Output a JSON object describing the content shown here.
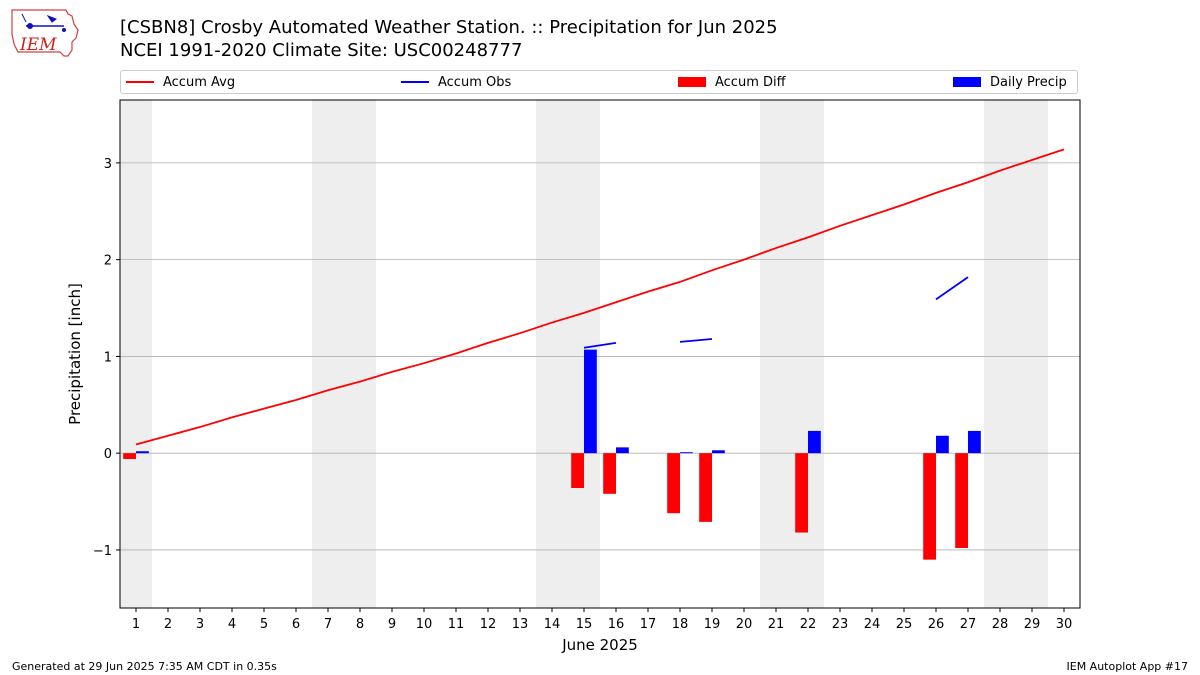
{
  "logo": {
    "text": "IEM"
  },
  "title_line1": "[CSBN8] Crosby Automated Weather Station. :: Precipitation for Jun 2025",
  "title_line2": "NCEI 1991-2020 Climate Site: USC00248777",
  "footer": {
    "left": "Generated at 29 Jun 2025 7:35 AM CDT in 0.35s",
    "right": "IEM Autoplot App #17"
  },
  "colors": {
    "avg": "#ff0000",
    "obs": "#0000ff",
    "diff": "#ff0000",
    "precip": "#0000ff",
    "weekend": "#eeeeee",
    "grid": "#b0b0b0"
  },
  "chart_data": {
    "type": "bar",
    "xlabel": "June 2025",
    "ylabel": "Precipitation [inch]",
    "xlim": [
      0.5,
      30.5
    ],
    "ylim": [
      -1.6,
      3.65
    ],
    "yticks": [
      -1,
      0,
      1,
      2,
      3
    ],
    "ytick_labels": [
      "−1",
      "0",
      "1",
      "2",
      "3"
    ],
    "xticks": [
      1,
      2,
      3,
      4,
      5,
      6,
      7,
      8,
      9,
      10,
      11,
      12,
      13,
      14,
      15,
      16,
      17,
      18,
      19,
      20,
      21,
      22,
      23,
      24,
      25,
      26,
      27,
      28,
      29,
      30
    ],
    "grid": "y",
    "legend_placement": "top",
    "weekend_shading": [
      [
        0.5,
        1.5
      ],
      [
        6.5,
        8.5
      ],
      [
        13.5,
        15.5
      ],
      [
        20.5,
        22.5
      ],
      [
        27.5,
        29.5
      ]
    ],
    "series": [
      {
        "name": "Accum Avg",
        "kind": "line",
        "x": [
          1,
          2,
          3,
          4,
          5,
          6,
          7,
          8,
          9,
          10,
          11,
          12,
          13,
          14,
          15,
          16,
          17,
          18,
          19,
          20,
          21,
          22,
          23,
          24,
          25,
          26,
          27,
          28,
          29,
          30
        ],
        "values": [
          0.09,
          0.18,
          0.27,
          0.37,
          0.46,
          0.55,
          0.65,
          0.74,
          0.84,
          0.93,
          1.03,
          1.14,
          1.24,
          1.35,
          1.45,
          1.56,
          1.67,
          1.77,
          1.89,
          2.0,
          2.12,
          2.23,
          2.35,
          2.46,
          2.57,
          2.69,
          2.8,
          2.92,
          3.03,
          3.14
        ]
      },
      {
        "name": "Accum Obs",
        "kind": "line",
        "segments": [
          {
            "x": [
              15,
              16
            ],
            "values": [
              1.09,
              1.14
            ]
          },
          {
            "x": [
              18,
              19
            ],
            "values": [
              1.15,
              1.18
            ]
          },
          {
            "x": [
              26,
              27
            ],
            "values": [
              1.59,
              1.82
            ]
          }
        ]
      },
      {
        "name": "Accum Diff",
        "kind": "bar",
        "x": [
          1,
          15,
          16,
          18,
          19,
          22,
          26,
          27
        ],
        "values": [
          -0.06,
          -0.36,
          -0.42,
          -0.62,
          -0.71,
          -0.82,
          -1.1,
          -0.98
        ]
      },
      {
        "name": "Daily Precip",
        "kind": "bar",
        "x": [
          1,
          15,
          16,
          18,
          19,
          22,
          26,
          27
        ],
        "values": [
          0.02,
          1.07,
          0.06,
          0.01,
          0.03,
          0.23,
          0.18,
          0.23
        ]
      }
    ]
  }
}
